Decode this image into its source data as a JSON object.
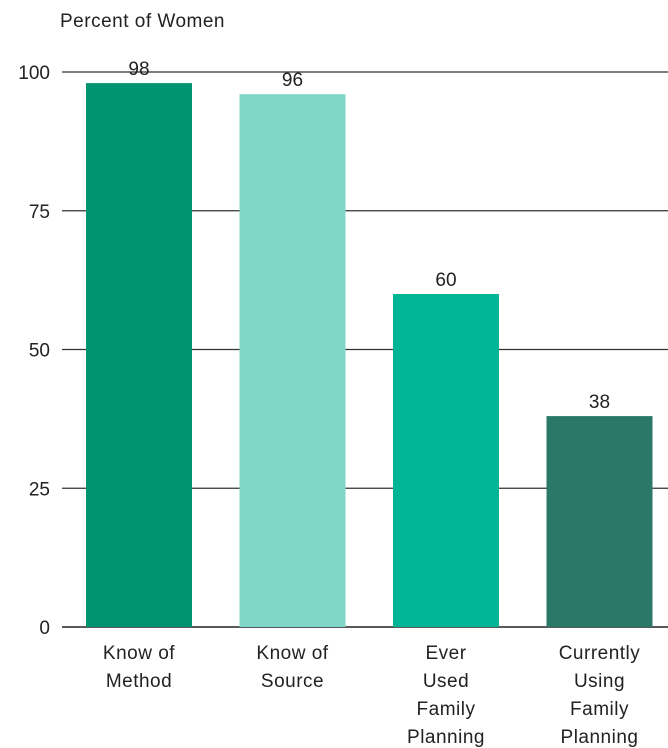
{
  "chart_data": {
    "type": "bar",
    "title": "",
    "ylabel": "Percent of Women",
    "xlabel": "",
    "ylim": [
      0,
      100
    ],
    "yticks": [
      0,
      25,
      50,
      75,
      100
    ],
    "grid": true,
    "categories": [
      [
        "Know of",
        "Method"
      ],
      [
        "Know of",
        "Source"
      ],
      [
        "Ever",
        "Used",
        "Family",
        "Planning"
      ],
      [
        "Currently",
        "Using",
        "Family",
        "Planning"
      ]
    ],
    "values": [
      98,
      96,
      60,
      38
    ],
    "colors": [
      "#00936f",
      "#7fd6c6",
      "#00b596",
      "#2a7968"
    ]
  }
}
